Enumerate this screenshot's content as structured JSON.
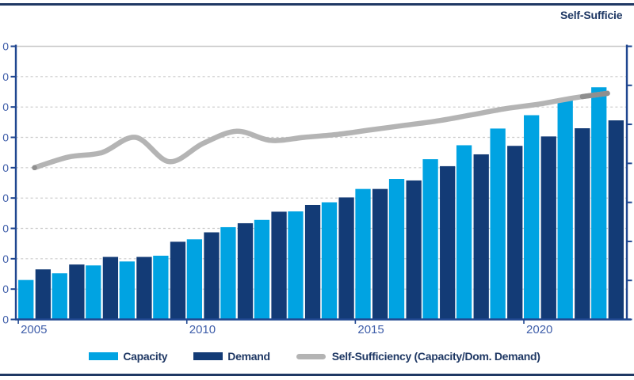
{
  "title": {
    "text": "Self-Sufficie"
  },
  "colors": {
    "capacity": "#00A3E2",
    "demand": "#133B76",
    "line": "#B4B4B4",
    "line_tip": "#8F8F8F",
    "axis": "#1F4690",
    "tick_label": "#3E5DA9",
    "gridline": "#CBCBCB",
    "text_navy": "#1F3864",
    "frame_border": "#1F3864"
  },
  "legend": {
    "items": [
      {
        "label": "Capacity",
        "swatch": "bar",
        "color": "#00A3E2"
      },
      {
        "label": "Demand",
        "swatch": "bar",
        "color": "#133B76"
      },
      {
        "label": "Self-Sufficiency (Capacity/Dom. Demand)",
        "swatch": "line",
        "color": "#B4B4B4"
      }
    ]
  },
  "chart_data": {
    "type": "bar+line combo",
    "categories": [
      2005,
      2006,
      2007,
      2008,
      2009,
      2010,
      2011,
      2012,
      2013,
      2014,
      2015,
      2016,
      2017,
      2018,
      2019,
      2020,
      2021,
      2022
    ],
    "series": [
      {
        "name": "Capacity",
        "type": "bar",
        "values": [
          13,
          15.2,
          17.8,
          19.1,
          21,
          26.4,
          30.4,
          32.8,
          35.6,
          38.6,
          43,
          46.3,
          52.8,
          57.4,
          62.9,
          67.3,
          72.7,
          76.5
        ]
      },
      {
        "name": "Demand",
        "type": "bar",
        "values": [
          16.5,
          18.1,
          20.6,
          20.6,
          25.6,
          28.7,
          31.7,
          35.5,
          37.7,
          40.2,
          43,
          45.8,
          50.5,
          54.4,
          57.2,
          60.3,
          63,
          65.6
        ]
      },
      {
        "name": "Self-Sufficiency (Capacity/Dom. Demand)",
        "type": "line",
        "values": [
          50,
          53.5,
          55,
          60,
          52,
          58,
          62,
          59,
          60,
          61,
          62.5,
          64,
          65.5,
          67.5,
          69.5,
          71,
          73,
          74.5
        ]
      }
    ],
    "title": "Self-Sufficie",
    "xlabel": "",
    "ylabel": "",
    "ylim": [
      0,
      90
    ],
    "x_tick_labels": [
      "2005",
      "2010",
      "2015",
      "2020"
    ],
    "x_tick_indices": [
      0,
      5,
      10,
      15
    ],
    "y_axis": {
      "tick_count": 10,
      "visible_labels": [
        "0",
        "0",
        "0",
        "0",
        "0",
        "0",
        "0",
        "0",
        "0",
        "0"
      ]
    },
    "y2_axis": {
      "tick_count": 8,
      "visible_labels": []
    },
    "grid": "dashed horizontal, solid top line",
    "legend_position": "bottom"
  }
}
